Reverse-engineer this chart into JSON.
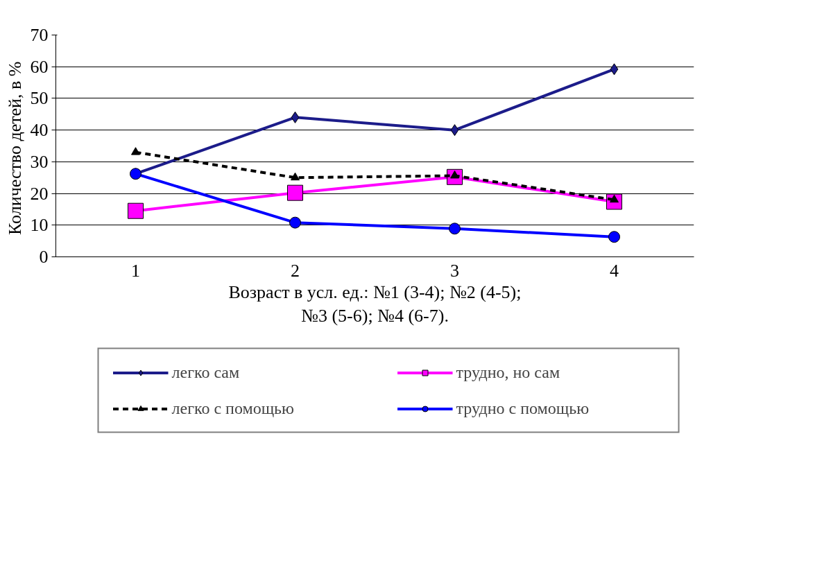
{
  "chart_data": {
    "type": "line",
    "xlabel": "Возраст в усл. ед.: №1 (3-4); №2 (4-5);\n№3 (5-6); №4 (6-7).",
    "ylabel": "Количество детей,  в %",
    "categories": [
      "1",
      "2",
      "3",
      "4"
    ],
    "series": [
      {
        "name": "легко сам",
        "color": "#1c1c8a",
        "marker": "diamond",
        "line_style": "solid",
        "values": [
          26.2,
          44,
          40,
          59.2
        ]
      },
      {
        "name": "трудно, но сам",
        "color": "#ff00ff",
        "marker": "square",
        "line_style": "solid",
        "values": [
          14.5,
          20.2,
          25.2,
          17.4
        ]
      },
      {
        "name": "легко с помощью",
        "color": "#000000",
        "marker": "triangle",
        "line_style": "dashed",
        "values": [
          33,
          25,
          25.6,
          18
        ]
      },
      {
        "name": "трудно с помощью",
        "color": "#0000ff",
        "marker": "circle",
        "line_style": "solid",
        "values": [
          26.2,
          10.8,
          8.9,
          6.3
        ]
      }
    ],
    "ylim": [
      0,
      70
    ],
    "yticks": [
      0,
      10,
      20,
      30,
      40,
      50,
      60,
      70
    ],
    "grid": "y",
    "legend": "bottom"
  }
}
